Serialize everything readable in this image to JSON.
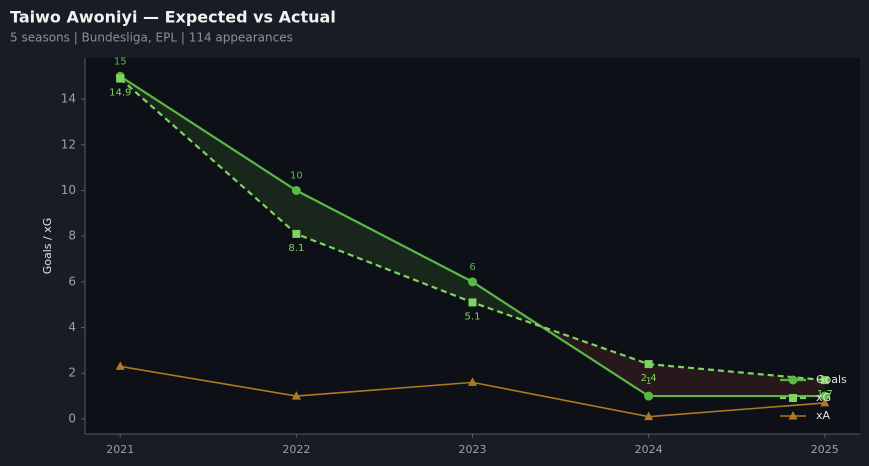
{
  "chart_data": {
    "type": "line",
    "title": "Taiwo Awoniyi — Expected vs Actual",
    "subtitle": "5 seasons | Bundesliga, EPL | 114 appearances",
    "y_label": "Goals / xG",
    "x": [
      2021,
      2022,
      2023,
      2024,
      2025
    ],
    "xlim": [
      2020.8,
      2025.2
    ],
    "xticks": [
      2021,
      2022,
      2023,
      2024,
      2025
    ],
    "ylim": [
      -0.66,
      15.8
    ],
    "yticks": [
      0,
      2,
      4,
      6,
      8,
      10,
      12,
      14
    ],
    "legend": "lower right",
    "series": [
      {
        "name": "Goals",
        "color": "#5ab845",
        "values": [
          15,
          10,
          6,
          1,
          1
        ]
      },
      {
        "name": "xG",
        "color": "#7fd461",
        "values": [
          14.9,
          8.1,
          5.1,
          2.4,
          1.7
        ]
      },
      {
        "name": "xA",
        "color": "#b07a22",
        "values": [
          2.3,
          1.0,
          1.6,
          0.1,
          0.7
        ]
      }
    ]
  }
}
